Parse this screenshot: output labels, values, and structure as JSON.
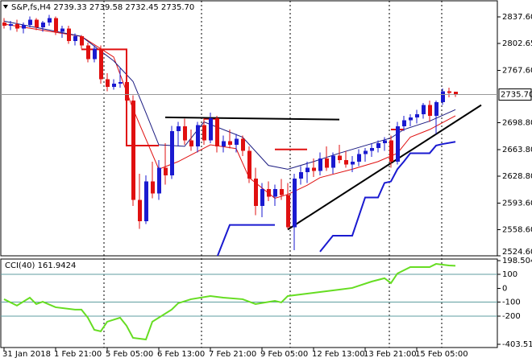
{
  "chart_data": [
    {
      "type": "candlestick",
      "title": "S&P,fs,H4  2739.33 2739.58 2732.45 2735.70",
      "categories": [
        "31 Jan 2018",
        null,
        null,
        null,
        null,
        null,
        null,
        null,
        "1 Feb 21:00",
        null,
        null,
        null,
        null,
        null,
        null,
        null,
        "5 Feb 05:00",
        null,
        null,
        null,
        null,
        null,
        null,
        null,
        "6 Feb 13:00",
        null,
        null,
        null,
        null,
        null,
        null,
        null,
        "7 Feb 21:00",
        null,
        null,
        null,
        null,
        null,
        null,
        null,
        "9 Feb 05:00",
        null,
        null,
        null,
        null,
        null,
        null,
        null,
        "12 Feb 13:00",
        null,
        null,
        null,
        null,
        null,
        null,
        null,
        "13 Feb 21:00",
        null,
        null,
        null,
        null,
        null,
        null,
        null,
        "15 Feb 05:00",
        null,
        null,
        null,
        null,
        null,
        null
      ],
      "open": [
        2830,
        2826,
        2828,
        2822,
        2827,
        2834,
        2824,
        2830,
        2836,
        2818,
        2822,
        2806,
        2812,
        2800,
        2782,
        2796,
        2756,
        2746,
        2750,
        2752,
        2728,
        2598,
        2570,
        2622,
        2606,
        2640,
        2630,
        2688,
        2694,
        2676,
        2668,
        2696,
        2676,
        2705,
        2668,
        2675,
        2670,
        2678,
        2662,
        2626,
        2590,
        2612,
        2602,
        2612,
        2604,
        2562,
        2626,
        2634,
        2640,
        2636,
        2652,
        2640,
        2656,
        2650,
        2644,
        2648,
        2658,
        2662,
        2666,
        2672,
        2676,
        2648,
        2694,
        2702,
        2706,
        2710,
        2722,
        2708,
        2726,
        2740,
        2739.33
      ],
      "high": [
        2836,
        2832,
        2834,
        2830,
        2838,
        2836,
        2832,
        2840,
        2838,
        2826,
        2826,
        2816,
        2814,
        2804,
        2800,
        2800,
        2764,
        2756,
        2770,
        2762,
        2735,
        2632,
        2630,
        2648,
        2650,
        2672,
        2695,
        2700,
        2704,
        2690,
        2700,
        2705,
        2712,
        2708,
        2682,
        2690,
        2684,
        2682,
        2668,
        2640,
        2620,
        2622,
        2618,
        2625,
        2620,
        2632,
        2642,
        2648,
        2652,
        2660,
        2668,
        2660,
        2670,
        2662,
        2655,
        2664,
        2666,
        2672,
        2676,
        2680,
        2682,
        2700,
        2708,
        2710,
        2716,
        2725,
        2728,
        2728,
        2744,
        2745,
        2739.58
      ],
      "low": [
        2822,
        2820,
        2818,
        2816,
        2824,
        2820,
        2818,
        2826,
        2814,
        2810,
        2802,
        2800,
        2796,
        2778,
        2778,
        2750,
        2740,
        2742,
        2745,
        2722,
        2590,
        2560,
        2566,
        2600,
        2598,
        2618,
        2625,
        2668,
        2670,
        2662,
        2660,
        2670,
        2672,
        2660,
        2660,
        2665,
        2660,
        2655,
        2620,
        2578,
        2575,
        2596,
        2590,
        2598,
        2560,
        2532,
        2618,
        2620,
        2628,
        2630,
        2636,
        2632,
        2646,
        2640,
        2634,
        2642,
        2648,
        2654,
        2660,
        2662,
        2640,
        2644,
        2688,
        2694,
        2698,
        2704,
        2700,
        2684,
        2722,
        2732,
        2732.45
      ],
      "close": [
        2826,
        2828,
        2822,
        2827,
        2834,
        2824,
        2830,
        2836,
        2818,
        2822,
        2806,
        2812,
        2800,
        2782,
        2796,
        2756,
        2746,
        2750,
        2752,
        2728,
        2598,
        2570,
        2622,
        2606,
        2640,
        2630,
        2688,
        2694,
        2676,
        2668,
        2696,
        2676,
        2705,
        2668,
        2675,
        2670,
        2678,
        2662,
        2626,
        2590,
        2612,
        2602,
        2612,
        2604,
        2562,
        2626,
        2634,
        2640,
        2636,
        2652,
        2640,
        2656,
        2650,
        2644,
        2648,
        2658,
        2662,
        2666,
        2672,
        2676,
        2648,
        2694,
        2702,
        2706,
        2710,
        2722,
        2708,
        2726,
        2740,
        2738,
        2735.7
      ],
      "up_color": "#1a1ad0",
      "down_color": "#e01010",
      "ylim": [
        2524.6,
        2858.6
      ],
      "yticks": [
        {
          "value": 2837.6,
          "label": "2837.60"
        },
        2802.65,
        {
          "value": 2767.6,
          "label": "2767.60"
        },
        {
          "value": 2698.8,
          "label": "2698.80"
        },
        {
          "value": 2663.8,
          "label": "2663.80"
        },
        {
          "value": 2628.8,
          "label": "2628.80"
        },
        {
          "value": 2593.6,
          "label": "2593.60"
        },
        {
          "value": 2558.6,
          "label": "2558.60"
        },
        {
          "value": 2524.6,
          "label": "2524.60"
        }
      ],
      "last_price": {
        "value": 2735.7,
        "label": "2735.70"
      },
      "overlays": [
        {
          "color": "#e01010",
          "width": 1,
          "x": [
            0,
            12,
            17,
            20,
            24,
            27,
            32,
            36,
            38,
            42,
            44,
            47,
            49,
            54,
            58,
            61,
            63,
            66,
            70
          ],
          "values": [
            2828,
            2812,
            2785,
            2717,
            2638,
            2648,
            2670,
            2665,
            2627,
            2600,
            2605,
            2617,
            2627,
            2638,
            2648,
            2659,
            2680,
            2690,
            2708
          ]
        },
        {
          "color": "#1a1a80",
          "width": 1,
          "x": [
            0,
            12,
            17,
            20,
            22,
            24,
            28,
            31,
            37,
            41,
            44,
            48,
            52,
            56,
            60,
            62,
            66,
            70
          ],
          "values": [
            2832,
            2812,
            2780,
            2753,
            2712,
            2670,
            2668,
            2700,
            2680,
            2643,
            2638,
            2648,
            2659,
            2669,
            2679,
            2690,
            2701,
            2716
          ]
        },
        {
          "color": "#e01010",
          "width": 2,
          "x": [
            12,
            19,
            19,
            24,
            null,
            31,
            33,
            null,
            42,
            47,
            null,
            60,
            62
          ],
          "values": [
            2795,
            2795,
            2669,
            2669,
            null,
            2704,
            2704,
            null,
            2664,
            2664,
            null,
            2690,
            2690
          ]
        },
        {
          "color": "#1a1ad0",
          "width": 2,
          "x": [
            33,
            35,
            42,
            null,
            49,
            51,
            54,
            56,
            58,
            59,
            60,
            61,
            62,
            63,
            66,
            67,
            68,
            70
          ],
          "values": [
            2522,
            2565,
            2565,
            null,
            2530,
            2551,
            2551,
            2601,
            2601,
            2620,
            2622,
            2638,
            2648,
            2659,
            2659,
            2669,
            2671,
            2674
          ]
        },
        {
          "color": "#000000",
          "width": 2,
          "x": [
            25,
            52
          ],
          "values": [
            2706,
            2703
          ]
        },
        {
          "color": "#000000",
          "width": 2,
          "x": [
            44,
            74
          ],
          "values": [
            2559,
            2722
          ]
        }
      ]
    },
    {
      "type": "line",
      "title": "CCI(40) 161.9424",
      "color": "#66dd22",
      "x": [
        0,
        2,
        4,
        5,
        6,
        8,
        11,
        12,
        13,
        14,
        15,
        16,
        18,
        19,
        20,
        22,
        23,
        26,
        27,
        29,
        32,
        34,
        37,
        39,
        42,
        43,
        44,
        47,
        49,
        52,
        54,
        57,
        59,
        60,
        61,
        63,
        66,
        67,
        69,
        70
      ],
      "values": [
        -79,
        -125,
        -68,
        -114,
        -97,
        -137,
        -154,
        -154,
        -212,
        -299,
        -310,
        -241,
        -212,
        -270,
        -357,
        -369,
        -241,
        -154,
        -108,
        -79,
        -56,
        -68,
        -79,
        -114,
        -91,
        -102,
        -56,
        -39,
        -27,
        -10,
        2,
        48,
        72,
        37,
        106,
        152,
        152,
        175,
        164,
        161.9424
      ],
      "ylim": [
        -403.5104,
        198.5044
      ],
      "yticks": [
        198.5044,
        100,
        0,
        -100,
        -200,
        -403.5104
      ],
      "levels": [
        100,
        -100,
        -200
      ]
    }
  ]
}
